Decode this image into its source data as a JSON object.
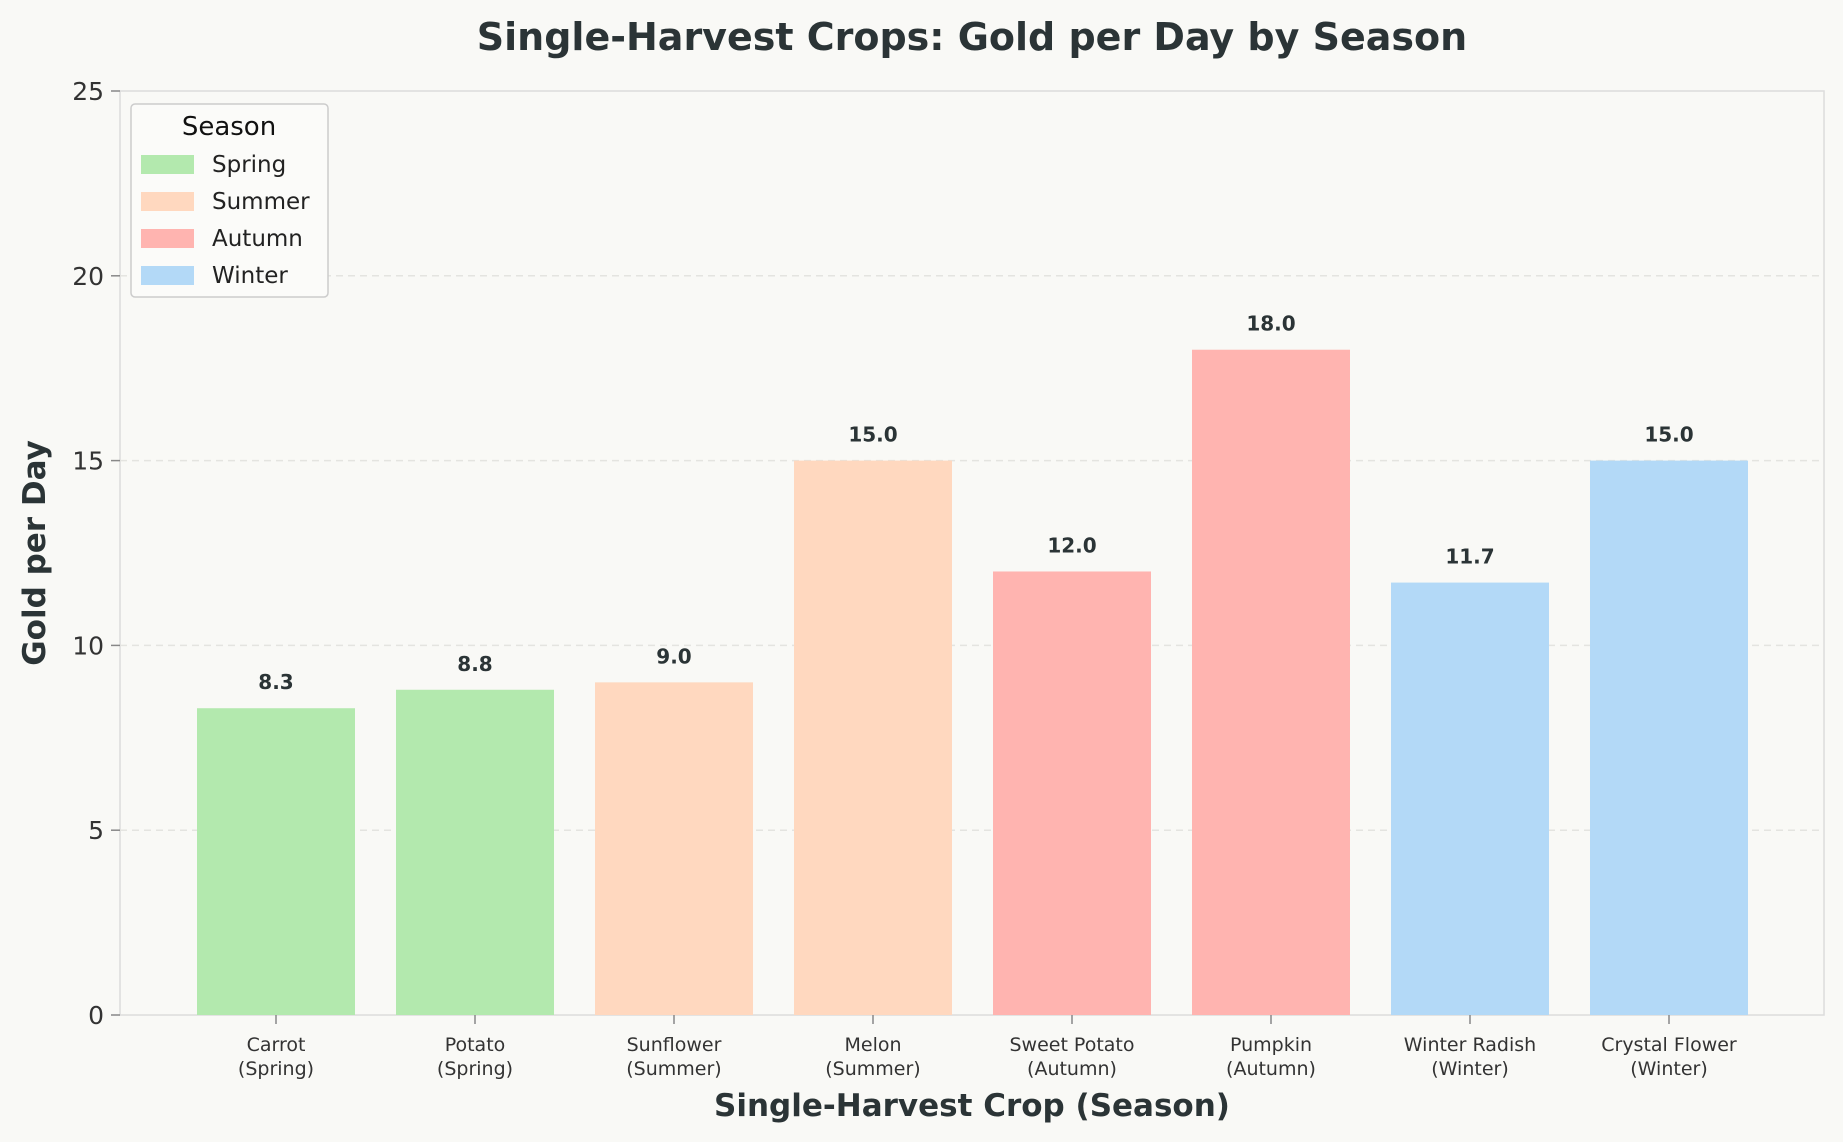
{
  "chart_data": {
    "type": "bar",
    "title": "Single-Harvest Crops: Gold per Day by Season",
    "xlabel": "Single-Harvest Crop (Season)",
    "ylabel": "Gold per Day",
    "ylim": [
      0,
      25
    ],
    "yticks": [
      0,
      5,
      10,
      15,
      20,
      25
    ],
    "grid": "y-dashed",
    "categories": [
      [
        "Carrot",
        "(Spring)"
      ],
      [
        "Potato",
        "(Spring)"
      ],
      [
        "Sunflower",
        "(Summer)"
      ],
      [
        "Melon",
        "(Summer)"
      ],
      [
        "Sweet Potato",
        "(Autumn)"
      ],
      [
        "Pumpkin",
        "(Autumn)"
      ],
      [
        "Winter Radish",
        "(Winter)"
      ],
      [
        "Crystal Flower",
        "(Winter)"
      ]
    ],
    "values": [
      8.3,
      8.8,
      9.0,
      15.0,
      12.0,
      18.0,
      11.7,
      15.0
    ],
    "value_labels": [
      "8.3",
      "8.8",
      "9.0",
      "15.0",
      "12.0",
      "18.0",
      "11.7",
      "15.0"
    ],
    "bar_seasons": [
      "Spring",
      "Spring",
      "Summer",
      "Summer",
      "Autumn",
      "Autumn",
      "Winter",
      "Winter"
    ],
    "legend": {
      "title": "Season",
      "placement": "top-left",
      "entries": [
        {
          "name": "Spring",
          "color": "#b3e9ae"
        },
        {
          "name": "Summer",
          "color": "#ffd8bf"
        },
        {
          "name": "Autumn",
          "color": "#ffb4b0"
        },
        {
          "name": "Winter",
          "color": "#b3d9f7"
        }
      ]
    }
  }
}
